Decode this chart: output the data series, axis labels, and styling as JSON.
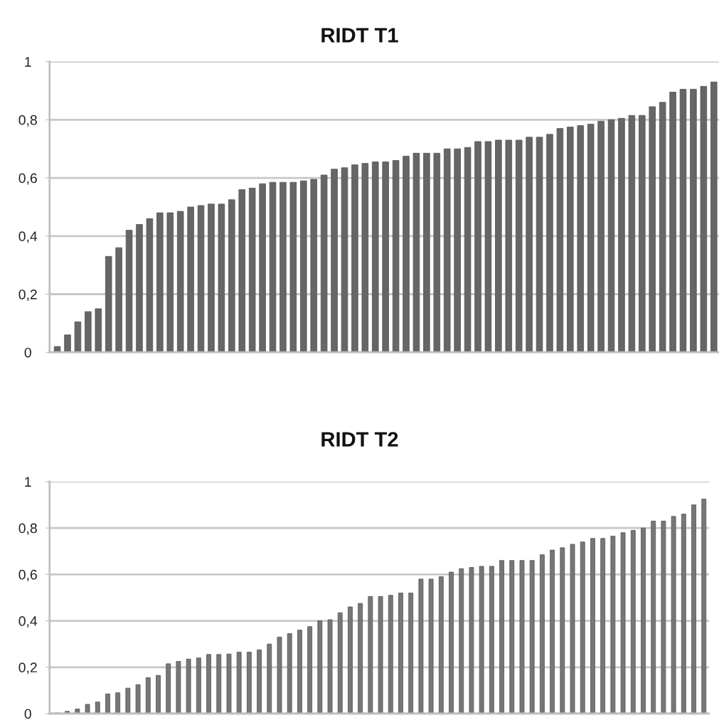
{
  "chart_data": [
    {
      "type": "bar",
      "title": "RIDT T1",
      "categories": [
        null,
        null,
        null,
        null,
        null,
        null,
        null,
        null,
        null,
        null,
        null,
        null,
        null,
        null,
        null,
        null,
        null,
        null,
        null,
        null,
        null,
        null,
        null,
        null,
        null,
        null,
        null,
        null,
        null,
        null,
        null,
        null,
        null,
        null,
        null,
        null,
        null,
        null,
        null,
        null,
        null,
        null,
        null,
        null,
        null,
        null,
        null,
        null,
        null,
        null,
        null,
        null,
        null,
        null,
        null,
        null,
        null,
        null,
        null,
        null,
        null,
        null,
        null,
        null,
        null
      ],
      "values": [
        0.02,
        0.06,
        0.105,
        0.14,
        0.15,
        0.33,
        0.36,
        0.42,
        0.44,
        0.46,
        0.48,
        0.48,
        0.485,
        0.5,
        0.505,
        0.51,
        0.51,
        0.525,
        0.56,
        0.565,
        0.58,
        0.585,
        0.585,
        0.585,
        0.59,
        0.595,
        0.61,
        0.63,
        0.635,
        0.645,
        0.65,
        0.655,
        0.655,
        0.66,
        0.675,
        0.685,
        0.685,
        0.685,
        0.7,
        0.7,
        0.705,
        0.725,
        0.725,
        0.73,
        0.73,
        0.73,
        0.74,
        0.74,
        0.75,
        0.77,
        0.775,
        0.78,
        0.785,
        0.795,
        0.8,
        0.805,
        0.815,
        0.815,
        0.845,
        0.86,
        0.895,
        0.905,
        0.905,
        0.915,
        0.93
      ],
      "color": "#666666",
      "ylim": [
        0,
        1
      ],
      "yticks": [
        0,
        {
          "value": 0.2,
          "label": "0,2"
        },
        {
          "value": 0.4,
          "label": "0,4"
        },
        {
          "value": 0.6,
          "label": "0,6"
        },
        {
          "value": 0.8,
          "label": "0,8"
        },
        1
      ],
      "grid": "y",
      "tick_labels": "y"
    },
    {
      "type": "bar",
      "title": "RIDT T2",
      "categories": [
        null,
        null,
        null,
        null,
        null,
        null,
        null,
        null,
        null,
        null,
        null,
        null,
        null,
        null,
        null,
        null,
        null,
        null,
        null,
        null,
        null,
        null,
        null,
        null,
        null,
        null,
        null,
        null,
        null,
        null,
        null,
        null,
        null,
        null,
        null,
        null,
        null,
        null,
        null,
        null,
        null,
        null,
        null,
        null,
        null,
        null,
        null,
        null,
        null,
        null,
        null,
        null,
        null,
        null,
        null,
        null,
        null,
        null,
        null,
        null,
        null,
        null,
        null,
        null,
        null
      ],
      "values": [
        0.003,
        0.01,
        0.02,
        0.04,
        0.05,
        0.085,
        0.09,
        0.11,
        0.125,
        0.155,
        0.165,
        0.215,
        0.225,
        0.235,
        0.24,
        0.255,
        0.255,
        0.257,
        0.265,
        0.265,
        0.275,
        0.3,
        0.33,
        0.345,
        0.36,
        0.375,
        0.4,
        0.405,
        0.435,
        0.46,
        0.475,
        0.505,
        0.505,
        0.51,
        0.52,
        0.52,
        0.58,
        0.58,
        0.59,
        0.61,
        0.625,
        0.63,
        0.635,
        0.635,
        0.66,
        0.66,
        0.66,
        0.66,
        0.685,
        0.705,
        0.715,
        0.73,
        0.74,
        0.755,
        0.755,
        0.765,
        0.78,
        0.79,
        0.8,
        0.83,
        0.83,
        0.85,
        0.86,
        0.9,
        0.925
      ],
      "color": "#777777",
      "ylim": [
        0,
        1
      ],
      "yticks": [
        0,
        {
          "value": 0.2,
          "label": "0,2"
        },
        {
          "value": 0.4,
          "label": "0,4"
        },
        {
          "value": 0.6,
          "label": "0,6"
        },
        {
          "value": 0.8,
          "label": "0,8"
        },
        1
      ],
      "grid": "y",
      "tick_labels": "y"
    }
  ]
}
